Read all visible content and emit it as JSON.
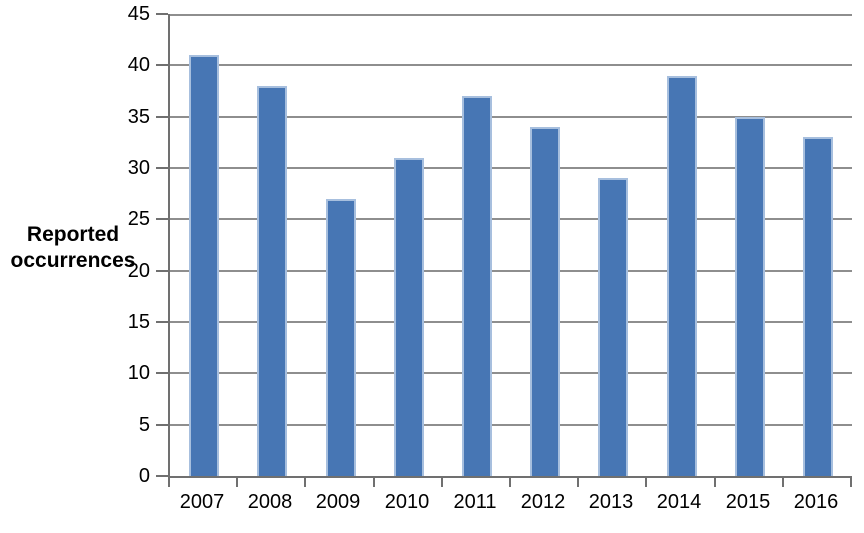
{
  "chart_data": {
    "type": "bar",
    "title": "",
    "categories": [
      "2007",
      "2008",
      "2009",
      "2010",
      "2011",
      "2012",
      "2013",
      "2014",
      "2015",
      "2016"
    ],
    "values": [
      41,
      38,
      27,
      31,
      37,
      34,
      29,
      39,
      35,
      33
    ],
    "xlabel": "",
    "ylabel": "Reported occurrences",
    "ylabel_text": "Reported\noccurrences",
    "ylim": [
      0,
      45
    ],
    "yticks": [
      0,
      5,
      10,
      15,
      20,
      25,
      30,
      35,
      40,
      45
    ],
    "grid": "horizontal",
    "legend": "none",
    "colors": {
      "bar_fill": "#4776B4",
      "bar_border": "#A7BFDE",
      "gridline": "#8E8E8E",
      "axis": "#707070",
      "text": "#000000",
      "background": "#FFFFFF"
    }
  }
}
